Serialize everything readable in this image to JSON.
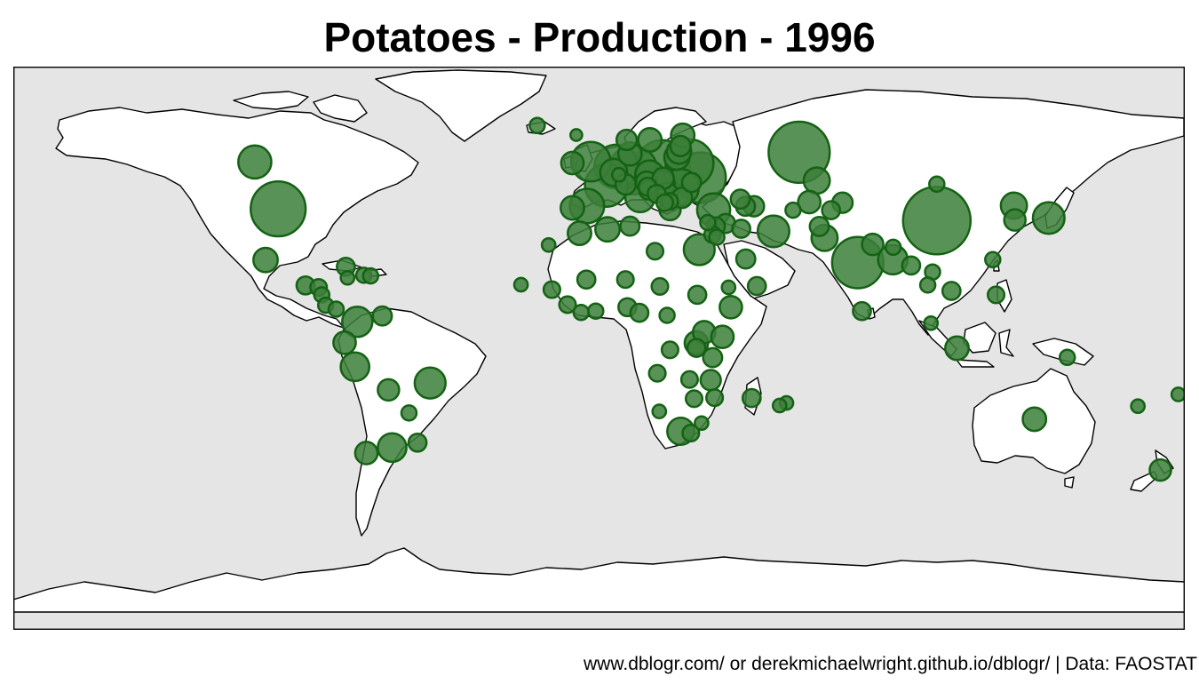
{
  "title": "Potatoes - Production - 1996",
  "caption": "www.dblogr.com/ or derekmichaelwright.github.io/dblogr/ | Data: FAOSTAT",
  "colors": {
    "ocean": "#e5e5e5",
    "land": "#ffffff",
    "border": "#000000",
    "bubble_fill": "#3c7f3a",
    "bubble_stroke": "#146214"
  },
  "chart_data": {
    "type": "scatter",
    "kind": "proportional-symbol world map",
    "projection": "equirectangular",
    "xlim": [
      -180,
      180
    ],
    "ylim": [
      -90,
      83
    ],
    "points": [
      {
        "region": "China",
        "lon": 103.8,
        "lat": 35.7,
        "size": 1.0
      },
      {
        "region": "Russia",
        "lon": 61.5,
        "lat": 56.7,
        "size": 0.82
      },
      {
        "region": "India",
        "lon": 79.5,
        "lat": 22.8,
        "size": 0.58
      },
      {
        "region": "Poland",
        "lon": 19.5,
        "lat": 52.0,
        "size": 0.66
      },
      {
        "region": "Ukraine",
        "lon": 31.2,
        "lat": 48.9,
        "size": 0.56
      },
      {
        "region": "Belarus",
        "lon": 27.8,
        "lat": 53.3,
        "size": 0.5
      },
      {
        "region": "Germany",
        "lon": 10.4,
        "lat": 51.2,
        "size": 0.52
      },
      {
        "region": "United States",
        "lon": -98.6,
        "lat": 39.3,
        "size": 0.66
      },
      {
        "region": "Netherlands",
        "lon": 5.3,
        "lat": 52.3,
        "size": 0.42
      },
      {
        "region": "France",
        "lon": 2.2,
        "lat": 46.5,
        "size": 0.4
      },
      {
        "region": "United Kingdom",
        "lon": -2.5,
        "lat": 53.8,
        "size": 0.34
      },
      {
        "region": "Romania",
        "lon": 25.0,
        "lat": 45.9,
        "size": 0.3
      },
      {
        "region": "Spain",
        "lon": -3.7,
        "lat": 40.2,
        "size": 0.26
      },
      {
        "region": "Canada",
        "lon": -105.8,
        "lat": 53.7,
        "size": 0.24
      },
      {
        "region": "Turkey",
        "lon": 35.2,
        "lat": 39.0,
        "size": 0.24
      },
      {
        "region": "Iran",
        "lon": 53.6,
        "lat": 32.4,
        "size": 0.22
      },
      {
        "region": "Japan",
        "lon": 138.2,
        "lat": 36.5,
        "size": 0.22
      },
      {
        "region": "Colombia",
        "lon": -74.3,
        "lat": 4.6,
        "size": 0.2
      },
      {
        "region": "Brazil",
        "lon": -51.9,
        "lat": -14.2,
        "size": 0.21
      },
      {
        "region": "Egypt",
        "lon": 30.8,
        "lat": 26.8,
        "size": 0.21
      },
      {
        "region": "Italy",
        "lon": 12.6,
        "lat": 42.8,
        "size": 0.19
      },
      {
        "region": "Bangladesh",
        "lon": 90.3,
        "lat": 23.7,
        "size": 0.19
      },
      {
        "region": "Peru",
        "lon": -75.0,
        "lat": -9.2,
        "size": 0.18
      },
      {
        "region": "Argentina",
        "lon": -63.6,
        "lat": -34.0,
        "size": 0.18
      },
      {
        "region": "South Africa",
        "lon": 25.1,
        "lat": -29.0,
        "size": 0.16
      },
      {
        "region": "North Korea",
        "lon": 127.5,
        "lat": 40.3,
        "size": 0.15
      },
      {
        "region": "Pakistan",
        "lon": 69.3,
        "lat": 30.4,
        "size": 0.15
      },
      {
        "region": "Kazakhstan",
        "lon": 66.9,
        "lat": 48.0,
        "size": 0.15
      },
      {
        "region": "Czech Republic",
        "lon": 15.5,
        "lat": 49.8,
        "size": 0.18
      },
      {
        "region": "Hungary",
        "lon": 19.5,
        "lat": 47.2,
        "size": 0.13
      },
      {
        "region": "Belgium",
        "lon": 4.5,
        "lat": 50.5,
        "size": 0.16
      },
      {
        "region": "Lithuania",
        "lon": 23.9,
        "lat": 55.2,
        "size": 0.14
      },
      {
        "region": "Latvia",
        "lon": 24.6,
        "lat": 56.9,
        "size": 0.13
      },
      {
        "region": "Sweden",
        "lon": 15.6,
        "lat": 60.5,
        "size": 0.12
      },
      {
        "region": "Finland",
        "lon": 25.7,
        "lat": 61.9,
        "size": 0.12
      },
      {
        "region": "Denmark",
        "lon": 9.5,
        "lat": 56.2,
        "size": 0.12
      },
      {
        "region": "Ireland",
        "lon": -8.2,
        "lat": 53.4,
        "size": 0.11
      },
      {
        "region": "Portugal",
        "lon": -8.2,
        "lat": 39.6,
        "size": 0.12
      },
      {
        "region": "Algeria",
        "lon": 2.6,
        "lat": 33.0,
        "size": 0.13
      },
      {
        "region": "Morocco",
        "lon": -6.0,
        "lat": 31.8,
        "size": 0.12
      },
      {
        "region": "Mexico",
        "lon": -102.5,
        "lat": 23.6,
        "size": 0.13
      },
      {
        "region": "Ecuador",
        "lon": -78.2,
        "lat": -1.8,
        "size": 0.11
      },
      {
        "region": "Bolivia",
        "lon": -64.7,
        "lat": -16.3,
        "size": 0.1
      },
      {
        "region": "Chile",
        "lon": -71.5,
        "lat": -35.7,
        "size": 0.11
      },
      {
        "region": "Rwanda",
        "lon": 29.9,
        "lat": -1.9,
        "size": 0.12
      },
      {
        "region": "Uganda",
        "lon": 32.3,
        "lat": 1.4,
        "size": 0.11
      },
      {
        "region": "Ethiopia",
        "lon": 40.5,
        "lat": 9.1,
        "size": 0.11
      },
      {
        "region": "Kenya",
        "lon": 37.9,
        "lat": 0.0,
        "size": 0.11
      },
      {
        "region": "Nepal",
        "lon": 84.1,
        "lat": 28.4,
        "size": 0.1
      },
      {
        "region": "Uzbekistan",
        "lon": 64.6,
        "lat": 41.4,
        "size": 0.11
      },
      {
        "region": "Australia",
        "lon": 133.8,
        "lat": -25.3,
        "size": 0.12
      },
      {
        "region": "New Zealand",
        "lon": 172.5,
        "lat": -40.9,
        "size": 0.1
      },
      {
        "region": "Indonesia",
        "lon": 110.0,
        "lat": -3.5,
        "size": 0.12
      },
      {
        "region": "South Korea",
        "lon": 127.8,
        "lat": 35.9,
        "size": 0.1
      },
      {
        "region": "Austria",
        "lon": 14.6,
        "lat": 47.5,
        "size": 0.1
      },
      {
        "region": "Greece",
        "lon": 21.8,
        "lat": 39.1,
        "size": 0.1
      },
      {
        "region": "Bulgaria",
        "lon": 25.5,
        "lat": 42.7,
        "size": 0.09
      },
      {
        "region": "Serbia",
        "lon": 20.9,
        "lat": 44.0,
        "size": 0.1
      },
      {
        "region": "Switzerland",
        "lon": 8.2,
        "lat": 46.8,
        "size": 0.09
      },
      {
        "region": "Slovakia",
        "lon": 19.7,
        "lat": 48.7,
        "size": 0.1
      },
      {
        "region": "Croatia",
        "lon": 15.2,
        "lat": 45.1,
        "size": 0.08
      },
      {
        "region": "Estonia",
        "lon": 25.0,
        "lat": 58.6,
        "size": 0.09
      },
      {
        "region": "Norway",
        "lon": 8.5,
        "lat": 60.5,
        "size": 0.09
      },
      {
        "region": "Azerbaijan",
        "lon": 47.6,
        "lat": 40.1,
        "size": 0.09
      },
      {
        "region": "Armenia",
        "lon": 45.0,
        "lat": 40.1,
        "size": 0.08
      },
      {
        "region": "Georgia",
        "lon": 43.4,
        "lat": 42.3,
        "size": 0.08
      },
      {
        "region": "Kyrgyzstan",
        "lon": 74.8,
        "lat": 41.2,
        "size": 0.09
      },
      {
        "region": "Tajikistan",
        "lon": 71.3,
        "lat": 38.9,
        "size": 0.07
      },
      {
        "region": "Syria",
        "lon": 38.9,
        "lat": 34.8,
        "size": 0.08
      },
      {
        "region": "Lebanon",
        "lon": 35.9,
        "lat": 33.9,
        "size": 0.07
      },
      {
        "region": "Saudi Arabia",
        "lon": 45.1,
        "lat": 23.9,
        "size": 0.08
      },
      {
        "region": "Yemen",
        "lon": 48.5,
        "lat": 15.6,
        "size": 0.07
      },
      {
        "region": "Iraq",
        "lon": 43.7,
        "lat": 33.2,
        "size": 0.07
      },
      {
        "region": "Afghanistan",
        "lon": 67.7,
        "lat": 33.9,
        "size": 0.08
      },
      {
        "region": "Myanmar",
        "lon": 95.9,
        "lat": 21.9,
        "size": 0.07
      },
      {
        "region": "Vietnam",
        "lon": 108.3,
        "lat": 14.1,
        "size": 0.07
      },
      {
        "region": "Philippines",
        "lon": 122.0,
        "lat": 12.9,
        "size": 0.06
      },
      {
        "region": "Sri Lanka",
        "lon": 80.8,
        "lat": 7.9,
        "size": 0.07
      },
      {
        "region": "Tunisia",
        "lon": 9.5,
        "lat": 34.0,
        "size": 0.08
      },
      {
        "region": "Nigeria",
        "lon": 8.7,
        "lat": 9.1,
        "size": 0.07
      },
      {
        "region": "Cameroon",
        "lon": 12.4,
        "lat": 7.4,
        "size": 0.07
      },
      {
        "region": "Tanzania",
        "lon": 34.9,
        "lat": -6.4,
        "size": 0.08
      },
      {
        "region": "Malawi",
        "lon": 34.3,
        "lat": -13.3,
        "size": 0.09
      },
      {
        "region": "Madagascar",
        "lon": 46.9,
        "lat": -18.8,
        "size": 0.07
      },
      {
        "region": "Burundi",
        "lon": 29.9,
        "lat": -3.4,
        "size": 0.07
      },
      {
        "region": "DR Congo",
        "lon": 21.8,
        "lat": -4.0,
        "size": 0.06
      },
      {
        "region": "Angola",
        "lon": 17.9,
        "lat": -11.2,
        "size": 0.06
      },
      {
        "region": "Mozambique",
        "lon": 35.5,
        "lat": -18.7,
        "size": 0.06
      },
      {
        "region": "Zimbabwe",
        "lon": 29.2,
        "lat": -19.0,
        "size": 0.06
      },
      {
        "region": "Zambia",
        "lon": 27.8,
        "lat": -13.1,
        "size": 0.06
      },
      {
        "region": "Sudan",
        "lon": 30.2,
        "lat": 12.9,
        "size": 0.07
      },
      {
        "region": "Mali",
        "lon": -3.9,
        "lat": 17.6,
        "size": 0.07
      },
      {
        "region": "Niger",
        "lon": 8.1,
        "lat": 17.6,
        "size": 0.06
      },
      {
        "region": "Chad",
        "lon": 18.7,
        "lat": 15.5,
        "size": 0.06
      },
      {
        "region": "Senegal",
        "lon": -14.5,
        "lat": 14.5,
        "size": 0.06
      },
      {
        "region": "Guinea",
        "lon": -9.7,
        "lat": 9.9,
        "size": 0.06
      },
      {
        "region": "Ghana",
        "lon": -1.0,
        "lat": 7.9,
        "size": 0.05
      },
      {
        "region": "Cote d'Ivoire",
        "lon": -5.5,
        "lat": 7.5,
        "size": 0.05
      },
      {
        "region": "Central African Rep.",
        "lon": 20.9,
        "lat": 6.6,
        "size": 0.05
      },
      {
        "region": "Venezuela",
        "lon": -66.6,
        "lat": 6.4,
        "size": 0.08
      },
      {
        "region": "Guatemala",
        "lon": -90.2,
        "lat": 15.8,
        "size": 0.07
      },
      {
        "region": "Honduras",
        "lon": -86.2,
        "lat": 15.2,
        "size": 0.06
      },
      {
        "region": "Nicaragua",
        "lon": -85.2,
        "lat": 12.9,
        "size": 0.05
      },
      {
        "region": "Costa Rica",
        "lon": -84.0,
        "lat": 9.7,
        "size": 0.05
      },
      {
        "region": "Panama",
        "lon": -80.8,
        "lat": 8.5,
        "size": 0.05
      },
      {
        "region": "Cuba",
        "lon": -77.8,
        "lat": 21.5,
        "size": 0.07
      },
      {
        "region": "Haiti",
        "lon": -72.3,
        "lat": 18.9,
        "size": 0.05
      },
      {
        "region": "Dominican Rep.",
        "lon": -70.2,
        "lat": 18.7,
        "size": 0.05
      },
      {
        "region": "Jamaica",
        "lon": -77.3,
        "lat": 18.1,
        "size": 0.04
      },
      {
        "region": "Paraguay",
        "lon": -58.4,
        "lat": -23.4,
        "size": 0.05
      },
      {
        "region": "Uruguay",
        "lon": -55.8,
        "lat": -32.5,
        "size": 0.07
      },
      {
        "region": "Iceland",
        "lon": -19.0,
        "lat": 64.9,
        "size": 0.05
      },
      {
        "region": "Mongolia",
        "lon": 103.8,
        "lat": 46.9,
        "size": 0.05
      },
      {
        "region": "Bhutan",
        "lon": 90.4,
        "lat": 27.5,
        "size": 0.05
      },
      {
        "region": "Laos",
        "lon": 102.5,
        "lat": 19.9,
        "size": 0.05
      },
      {
        "region": "Thailand",
        "lon": 101.0,
        "lat": 15.9,
        "size": 0.05
      },
      {
        "region": "Malaysia",
        "lon": 102.0,
        "lat": 4.2,
        "size": 0.04
      },
      {
        "region": "Papua New Guinea",
        "lon": 143.9,
        "lat": -6.3,
        "size": 0.05
      },
      {
        "region": "Fiji",
        "lon": 178.0,
        "lat": -17.7,
        "size": 0.04
      },
      {
        "region": "New Caledonia",
        "lon": 165.6,
        "lat": -21.3,
        "size": 0.04
      },
      {
        "region": "Mauritius",
        "lon": 57.6,
        "lat": -20.3,
        "size": 0.04
      },
      {
        "region": "Reunion",
        "lon": 55.5,
        "lat": -21.1,
        "size": 0.04
      },
      {
        "region": "Cape Verde",
        "lon": -24.0,
        "lat": 16.0,
        "size": 0.04
      },
      {
        "region": "Canary Islands",
        "lon": -15.5,
        "lat": 28.2,
        "size": 0.04
      },
      {
        "region": "Cyprus",
        "lon": 33.4,
        "lat": 35.1,
        "size": 0.05
      },
      {
        "region": "Israel",
        "lon": 34.9,
        "lat": 31.4,
        "size": 0.06
      },
      {
        "region": "Jordan",
        "lon": 36.2,
        "lat": 30.6,
        "size": 0.05
      },
      {
        "region": "Libya",
        "lon": 17.2,
        "lat": 26.3,
        "size": 0.06
      },
      {
        "region": "Slovenia",
        "lon": 14.9,
        "lat": 46.1,
        "size": 0.07
      },
      {
        "region": "Bosnia",
        "lon": 17.7,
        "lat": 43.9,
        "size": 0.07
      },
      {
        "region": "Macedonia",
        "lon": 21.7,
        "lat": 41.6,
        "size": 0.06
      },
      {
        "region": "Albania",
        "lon": 20.2,
        "lat": 41.2,
        "size": 0.06
      },
      {
        "region": "Moldova",
        "lon": 28.4,
        "lat": 47.4,
        "size": 0.08
      },
      {
        "region": "Luxembourg",
        "lon": 6.1,
        "lat": 49.8,
        "size": 0.04
      },
      {
        "region": "Turkmenistan",
        "lon": 59.6,
        "lat": 38.9,
        "size": 0.05
      },
      {
        "region": "Faroe Islands",
        "lon": -7.0,
        "lat": 62.0,
        "size": 0.03
      },
      {
        "region": "Taiwan",
        "lon": 121.0,
        "lat": 23.7,
        "size": 0.05
      },
      {
        "region": "Eritrea",
        "lon": 39.8,
        "lat": 15.2,
        "size": 0.04
      },
      {
        "region": "Eswatini",
        "lon": 31.5,
        "lat": -26.5,
        "size": 0.04
      },
      {
        "region": "Lesotho",
        "lon": 28.2,
        "lat": -29.6,
        "size": 0.06
      },
      {
        "region": "Namibia",
        "lon": 18.5,
        "lat": -22.9,
        "size": 0.04
      }
    ]
  }
}
